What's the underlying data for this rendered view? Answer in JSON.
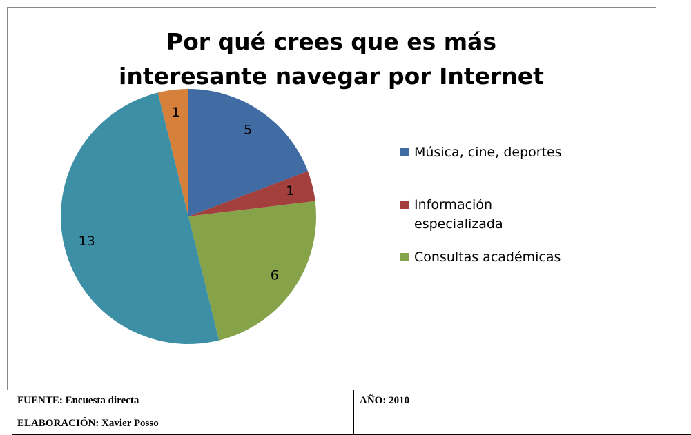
{
  "chart_data": {
    "type": "pie",
    "title": "Por qué crees que es más interesante navegar por Internet",
    "categories": [
      "Música, cine, deportes",
      "Información especializada",
      "Consultas académicas",
      null,
      null
    ],
    "values": [
      5,
      1,
      6,
      13,
      1
    ],
    "colors": [
      "#416CA3",
      "#A3403E",
      "#86A34A",
      "#3D8FA6",
      "#D5813C"
    ]
  },
  "table": {
    "rows": [
      [
        "FUENTE: Encuesta directa",
        "AÑO: 2010"
      ],
      [
        "ELABORACIÓN: Xavier Posso"
      ]
    ]
  }
}
